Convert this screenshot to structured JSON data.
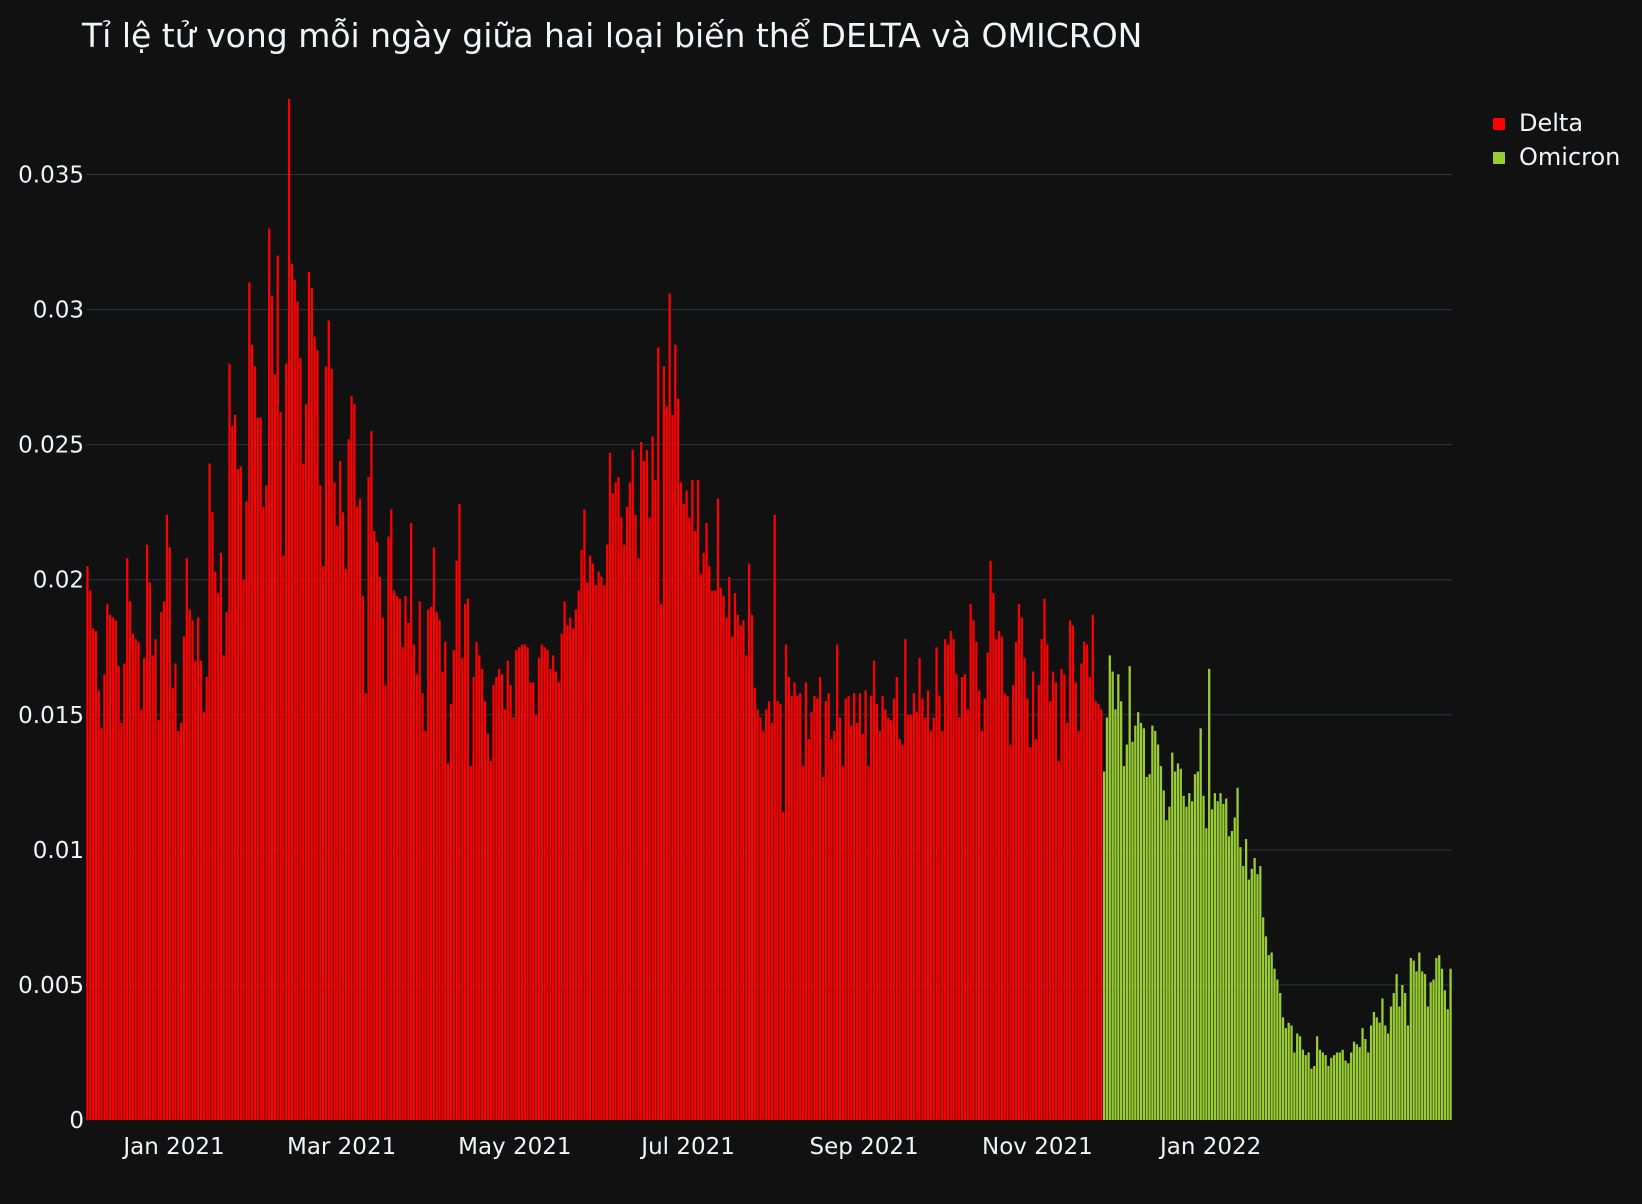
{
  "chart_data": {
    "type": "bar",
    "title": "Tỉ lệ tử vong mỗi ngày giữa hai loại biến thể DELTA và OMICRON",
    "xlabel": "",
    "ylabel": "",
    "x_start": "2020-12-01",
    "ylim": [
      0,
      0.0385
    ],
    "y_ticks": [
      0,
      0.005,
      0.01,
      0.015,
      0.02,
      0.025,
      0.03,
      0.035
    ],
    "y_tick_labels": [
      "0",
      "0.005",
      "0.01",
      "0.015",
      "0.02",
      "0.025",
      "0.03",
      "0.035"
    ],
    "x_tick_labels": [
      "Jan 2021",
      "Mar 2021",
      "May 2021",
      "Jul 2021",
      "Sep 2021",
      "Nov 2021",
      "Jan 2022"
    ],
    "x_tick_dates": [
      "2021-01-01",
      "2021-03-01",
      "2021-05-01",
      "2021-07-01",
      "2021-09-01",
      "2021-11-01",
      "2022-01-01"
    ],
    "grid": true,
    "legend_position": "top-right",
    "series": [
      {
        "name": "Delta",
        "color": "#ff0000",
        "values": [
          0.0205,
          0.0196,
          0.0182,
          0.0181,
          0.0159,
          0.0145,
          0.0165,
          0.0191,
          0.0187,
          0.0186,
          0.0185,
          0.0168,
          0.0147,
          0.0169,
          0.0208,
          0.0192,
          0.018,
          0.0178,
          0.0177,
          0.0152,
          0.0171,
          0.0213,
          0.0199,
          0.0172,
          0.0178,
          0.0148,
          0.0188,
          0.0192,
          0.0224,
          0.0212,
          0.016,
          0.0169,
          0.0144,
          0.0147,
          0.0179,
          0.0208,
          0.0189,
          0.0185,
          0.017,
          0.0186,
          0.017,
          0.0151,
          0.0164,
          0.0243,
          0.0225,
          0.0203,
          0.0195,
          0.021,
          0.0172,
          0.0188,
          0.028,
          0.0257,
          0.0261,
          0.0241,
          0.0242,
          0.02,
          0.0229,
          0.031,
          0.0287,
          0.0279,
          0.026,
          0.026,
          0.0227,
          0.0235,
          0.033,
          0.0305,
          0.0276,
          0.032,
          0.0262,
          0.0209,
          0.028,
          0.0378,
          0.0317,
          0.0311,
          0.0303,
          0.0282,
          0.0243,
          0.0265,
          0.0314,
          0.0308,
          0.029,
          0.0285,
          0.0235,
          0.0205,
          0.0279,
          0.0296,
          0.0278,
          0.0236,
          0.022,
          0.0244,
          0.0225,
          0.0204,
          0.0252,
          0.0268,
          0.0265,
          0.0227,
          0.023,
          0.0194,
          0.0158,
          0.0238,
          0.0255,
          0.0218,
          0.0214,
          0.0201,
          0.0186,
          0.0161,
          0.0216,
          0.0226,
          0.0196,
          0.0194,
          0.0193,
          0.0175,
          0.0194,
          0.0184,
          0.0221,
          0.0176,
          0.0165,
          0.0192,
          0.0158,
          0.0144,
          0.0189,
          0.019,
          0.0212,
          0.0188,
          0.0185,
          0.0166,
          0.0177,
          0.0132,
          0.0154,
          0.0174,
          0.0207,
          0.0228,
          0.0171,
          0.0191,
          0.0193,
          0.0131,
          0.0164,
          0.0177,
          0.0172,
          0.0167,
          0.0155,
          0.0143,
          0.0133,
          0.0161,
          0.0164,
          0.0167,
          0.0165,
          0.0152,
          0.017,
          0.0161,
          0.0149,
          0.0174,
          0.0175,
          0.0176,
          0.0176,
          0.0175,
          0.0162,
          0.0162,
          0.015,
          0.0171,
          0.0176,
          0.0175,
          0.0174,
          0.0167,
          0.0172,
          0.0166,
          0.0162,
          0.018,
          0.0192,
          0.0183,
          0.0186,
          0.0182,
          0.0189,
          0.0196,
          0.0211,
          0.0226,
          0.0199,
          0.0209,
          0.0206,
          0.0198,
          0.0203,
          0.0201,
          0.0198,
          0.0213,
          0.0247,
          0.0232,
          0.0236,
          0.0238,
          0.0223,
          0.0213,
          0.0227,
          0.0236,
          0.0248,
          0.0224,
          0.0208,
          0.0251,
          0.0244,
          0.0248,
          0.0223,
          0.0253,
          0.0237,
          0.0286,
          0.0191,
          0.0279,
          0.0264,
          0.0306,
          0.0261,
          0.0287,
          0.0267,
          0.0236,
          0.0228,
          0.0233,
          0.0223,
          0.0237,
          0.0218,
          0.0237,
          0.0202,
          0.021,
          0.0221,
          0.0205,
          0.0196,
          0.0196,
          0.023,
          0.0197,
          0.0194,
          0.0186,
          0.0201,
          0.0179,
          0.0195,
          0.0187,
          0.0183,
          0.0185,
          0.0172,
          0.0206,
          0.0187,
          0.016,
          0.0152,
          0.0149,
          0.0144,
          0.0152,
          0.0155,
          0.0147,
          0.0224,
          0.0155,
          0.0154,
          0.0114,
          0.0176,
          0.0164,
          0.0157,
          0.0162,
          0.0157,
          0.0158,
          0.0131,
          0.0162,
          0.0141,
          0.0151,
          0.0157,
          0.0156,
          0.0164,
          0.0127,
          0.0155,
          0.0158,
          0.0141,
          0.0144,
          0.0176,
          0.0149,
          0.0131,
          0.0156,
          0.0157,
          0.0146,
          0.0158,
          0.0147,
          0.0158,
          0.0143,
          0.0159,
          0.0131,
          0.0157,
          0.017,
          0.0154,
          0.0144,
          0.0157,
          0.0152,
          0.0149,
          0.0148,
          0.0156,
          0.0164,
          0.0141,
          0.0139,
          0.0178,
          0.015,
          0.015,
          0.0158,
          0.0151,
          0.0171,
          0.0156,
          0.0149,
          0.0159,
          0.0144,
          0.0149,
          0.0175,
          0.0157,
          0.0144,
          0.0178,
          0.0176,
          0.0181,
          0.0178,
          0.0165,
          0.0149,
          0.0164,
          0.0165,
          0.0152,
          0.0191,
          0.0185,
          0.0177,
          0.0159,
          0.0144,
          0.0156,
          0.0173,
          0.0207,
          0.0195,
          0.0178,
          0.0181,
          0.0179,
          0.0158,
          0.0157,
          0.0139,
          0.0161,
          0.0177,
          0.0191,
          0.0186,
          0.0171,
          0.0156,
          0.0138,
          0.0166,
          0.0141,
          0.0161,
          0.0178,
          0.0193,
          0.0176,
          0.0155,
          0.0166,
          0.0162,
          0.0133,
          0.0167,
          0.0165,
          0.0147,
          0.0185,
          0.0183,
          0.0162,
          0.0144,
          0.0169,
          0.0177,
          0.0176,
          0.0164,
          0.0187,
          0.0155,
          0.0154,
          0.0152
        ]
      },
      {
        "name": "Omicron",
        "color": "#9acd32",
        "values": [
          0.0129,
          0.0149,
          0.0172,
          0.0166,
          0.0152,
          0.0165,
          0.0155,
          0.0131,
          0.0139,
          0.0168,
          0.014,
          0.0146,
          0.0151,
          0.0147,
          0.0145,
          0.0127,
          0.0128,
          0.0146,
          0.0144,
          0.0139,
          0.0131,
          0.0122,
          0.0111,
          0.0116,
          0.0136,
          0.0129,
          0.0132,
          0.013,
          0.012,
          0.0116,
          0.0121,
          0.0118,
          0.0128,
          0.0129,
          0.0145,
          0.012,
          0.0108,
          0.0167,
          0.0115,
          0.0121,
          0.0118,
          0.0121,
          0.0117,
          0.0119,
          0.0105,
          0.0107,
          0.0112,
          0.0123,
          0.0101,
          0.0094,
          0.0104,
          0.0089,
          0.0093,
          0.0097,
          0.0091,
          0.0094,
          0.0075,
          0.0068,
          0.0061,
          0.0062,
          0.0056,
          0.0052,
          0.0047,
          0.0038,
          0.0034,
          0.0036,
          0.0035,
          0.0025,
          0.0032,
          0.0031,
          0.0026,
          0.0024,
          0.0025,
          0.0019,
          0.002,
          0.0031,
          0.0026,
          0.0025,
          0.0024,
          0.002,
          0.0023,
          0.0024,
          0.0025,
          0.0025,
          0.0026,
          0.0022,
          0.0021,
          0.0025,
          0.0029,
          0.0028,
          0.0027,
          0.0034,
          0.003,
          0.0025,
          0.0035,
          0.004,
          0.0038,
          0.0036,
          0.0045,
          0.0035,
          0.0032,
          0.0042,
          0.0047,
          0.0054,
          0.0042,
          0.005,
          0.0047,
          0.0035,
          0.006,
          0.0059,
          0.0055,
          0.0062,
          0.0055,
          0.0054,
          0.0042,
          0.0051,
          0.0052,
          0.006,
          0.0061,
          0.0056,
          0.0048,
          0.0041,
          0.0056
        ]
      }
    ]
  }
}
